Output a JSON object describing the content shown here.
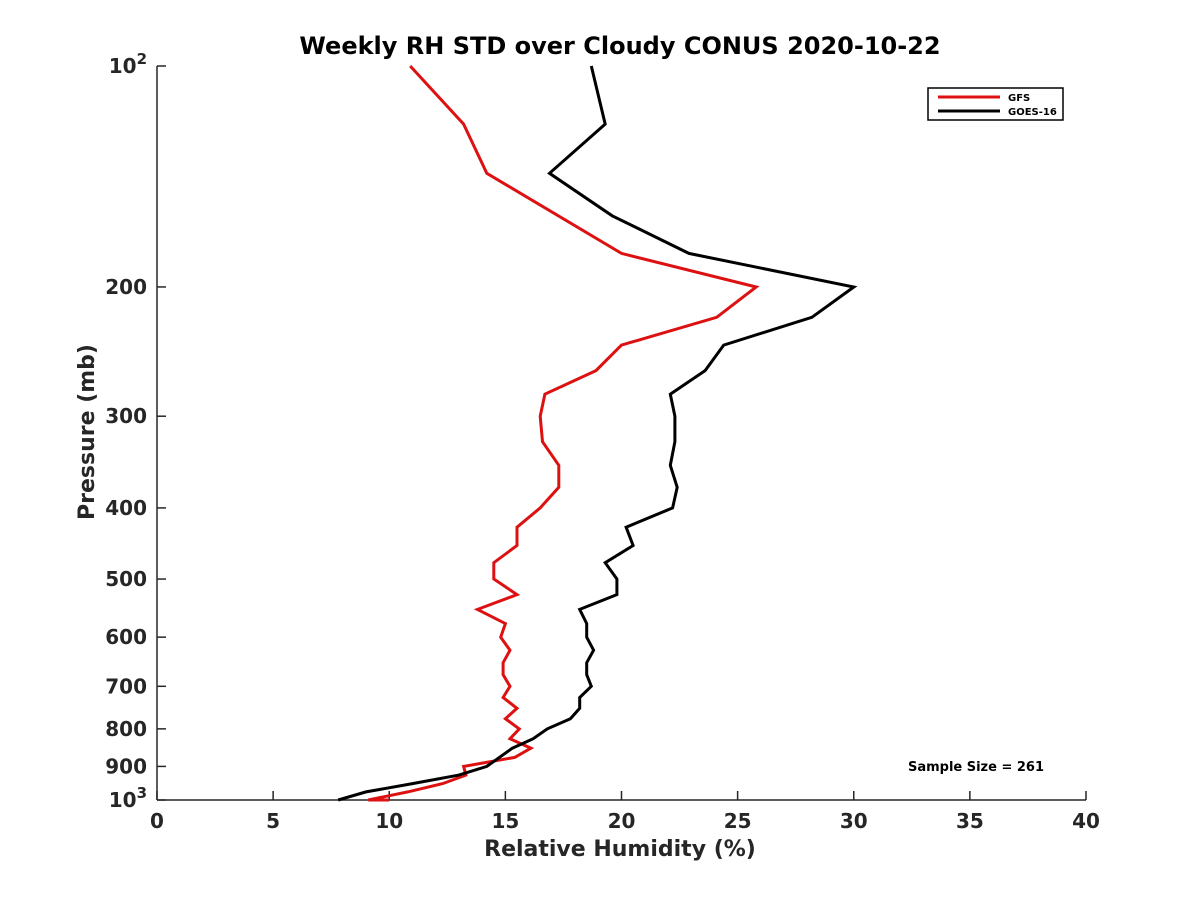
{
  "chart_data": {
    "type": "line",
    "title": "Weekly RH STD over Cloudy CONUS 2020-10-22",
    "xlabel": "Relative Humidity (%)",
    "ylabel": "Pressure (mb)",
    "xlim": [
      0,
      40
    ],
    "ylim": [
      100,
      1000
    ],
    "y_scale": "log",
    "y_reversed": true,
    "grid": false,
    "legend_position": "top-right",
    "xticks": [
      0,
      5,
      10,
      15,
      20,
      25,
      30,
      35,
      40
    ],
    "xtick_labels": [
      "0",
      "5",
      "10",
      "15",
      "20",
      "25",
      "30",
      "35",
      "40"
    ],
    "yticks": [
      100,
      200,
      300,
      400,
      500,
      600,
      700,
      800,
      900,
      1000
    ],
    "ytick_labels": [
      {
        "base": "10",
        "exp": "2"
      },
      {
        "base": "200",
        "exp": ""
      },
      {
        "base": "300",
        "exp": ""
      },
      {
        "base": "400",
        "exp": ""
      },
      {
        "base": "500",
        "exp": ""
      },
      {
        "base": "600",
        "exp": ""
      },
      {
        "base": "700",
        "exp": ""
      },
      {
        "base": "800",
        "exp": ""
      },
      {
        "base": "900",
        "exp": ""
      },
      {
        "base": "10",
        "exp": "3"
      }
    ],
    "annotation": "Sample Size = 261",
    "series": [
      {
        "name": "GFS",
        "color": "#dd1111",
        "points": [
          {
            "x": 10.9,
            "p": 100
          },
          {
            "x": 13.2,
            "p": 120
          },
          {
            "x": 14.2,
            "p": 140
          },
          {
            "x": 20.0,
            "p": 180
          },
          {
            "x": 25.8,
            "p": 200
          },
          {
            "x": 24.1,
            "p": 220
          },
          {
            "x": 20.0,
            "p": 240
          },
          {
            "x": 18.9,
            "p": 260
          },
          {
            "x": 16.7,
            "p": 280
          },
          {
            "x": 16.5,
            "p": 300
          },
          {
            "x": 16.6,
            "p": 325
          },
          {
            "x": 17.3,
            "p": 350
          },
          {
            "x": 17.3,
            "p": 375
          },
          {
            "x": 16.5,
            "p": 400
          },
          {
            "x": 15.5,
            "p": 425
          },
          {
            "x": 15.5,
            "p": 450
          },
          {
            "x": 14.5,
            "p": 475
          },
          {
            "x": 14.5,
            "p": 500
          },
          {
            "x": 15.5,
            "p": 525
          },
          {
            "x": 13.8,
            "p": 550
          },
          {
            "x": 15.0,
            "p": 575
          },
          {
            "x": 14.8,
            "p": 600
          },
          {
            "x": 15.2,
            "p": 625
          },
          {
            "x": 14.9,
            "p": 650
          },
          {
            "x": 14.9,
            "p": 675
          },
          {
            "x": 15.2,
            "p": 700
          },
          {
            "x": 14.9,
            "p": 725
          },
          {
            "x": 15.5,
            "p": 750
          },
          {
            "x": 15.0,
            "p": 775
          },
          {
            "x": 15.6,
            "p": 800
          },
          {
            "x": 15.2,
            "p": 825
          },
          {
            "x": 16.1,
            "p": 850
          },
          {
            "x": 15.4,
            "p": 875
          },
          {
            "x": 13.2,
            "p": 900
          },
          {
            "x": 13.3,
            "p": 925
          },
          {
            "x": 12.3,
            "p": 950
          },
          {
            "x": 10.8,
            "p": 975
          },
          {
            "x": 9.1,
            "p": 1000
          },
          {
            "x": 10.0,
            "p": 1000
          }
        ]
      },
      {
        "name": "GOES-16",
        "color": "#000000",
        "points": [
          {
            "x": 18.7,
            "p": 100
          },
          {
            "x": 19.3,
            "p": 120
          },
          {
            "x": 16.9,
            "p": 140
          },
          {
            "x": 19.6,
            "p": 160
          },
          {
            "x": 22.9,
            "p": 180
          },
          {
            "x": 30.0,
            "p": 200
          },
          {
            "x": 28.2,
            "p": 220
          },
          {
            "x": 24.4,
            "p": 240
          },
          {
            "x": 23.6,
            "p": 260
          },
          {
            "x": 22.1,
            "p": 280
          },
          {
            "x": 22.3,
            "p": 300
          },
          {
            "x": 22.3,
            "p": 325
          },
          {
            "x": 22.1,
            "p": 350
          },
          {
            "x": 22.4,
            "p": 375
          },
          {
            "x": 22.2,
            "p": 400
          },
          {
            "x": 20.2,
            "p": 425
          },
          {
            "x": 20.5,
            "p": 450
          },
          {
            "x": 19.3,
            "p": 475
          },
          {
            "x": 19.8,
            "p": 500
          },
          {
            "x": 19.8,
            "p": 525
          },
          {
            "x": 18.2,
            "p": 550
          },
          {
            "x": 18.5,
            "p": 575
          },
          {
            "x": 18.5,
            "p": 600
          },
          {
            "x": 18.8,
            "p": 625
          },
          {
            "x": 18.5,
            "p": 650
          },
          {
            "x": 18.5,
            "p": 675
          },
          {
            "x": 18.7,
            "p": 700
          },
          {
            "x": 18.2,
            "p": 725
          },
          {
            "x": 18.2,
            "p": 750
          },
          {
            "x": 17.8,
            "p": 775
          },
          {
            "x": 16.8,
            "p": 800
          },
          {
            "x": 16.2,
            "p": 825
          },
          {
            "x": 15.3,
            "p": 850
          },
          {
            "x": 14.2,
            "p": 900
          },
          {
            "x": 13.0,
            "p": 925
          },
          {
            "x": 11.0,
            "p": 950
          },
          {
            "x": 9.0,
            "p": 975
          },
          {
            "x": 7.8,
            "p": 1000
          }
        ]
      }
    ]
  }
}
